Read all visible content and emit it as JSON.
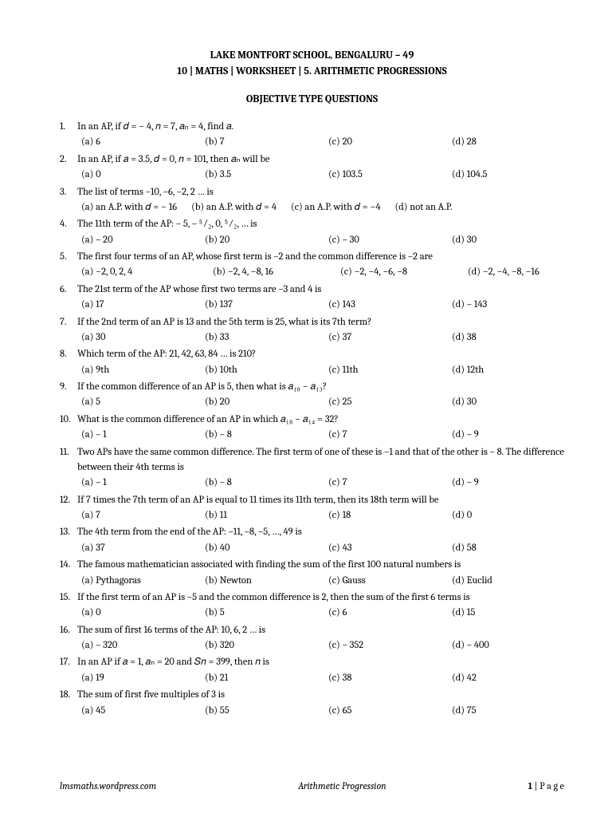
{
  "header": {
    "line1": "LAKE MONTFORT SCHOOL, BENGALURU – 49",
    "line2": "10 | MATHS | WORKSHEET | 5. ARITHMETIC PROGRESSIONS"
  },
  "subheader": "OBJECTIVE TYPE QUESTIONS",
  "questions": [
    {
      "n": "1.",
      "text": "In an AP, if 𝑑 = − 4, 𝑛 = 7, 𝑎ₙ = 4, find 𝑎.",
      "opts": [
        "(a) 6",
        "(b) 7",
        "(c) 20",
        "(d) 28"
      ]
    },
    {
      "n": "2.",
      "text": "In an AP, if 𝑎 = 3.5, 𝑑 = 0, 𝑛 = 101, then 𝑎ₙ will be",
      "opts": [
        "(a) 0",
        "(b) 3.5",
        "(c) 103.5",
        "(d) 104.5"
      ]
    },
    {
      "n": "3.",
      "text": "The list of terms –10, –6, –2, 2 … is",
      "opts_inline": true,
      "opts": [
        "(a) an A.P. with 𝑑 = − 16",
        "(b) an A.P. with 𝑑 = 4",
        "(c) an A.P. with 𝑑 = −4",
        "(d) not an A.P."
      ]
    },
    {
      "n": "4.",
      "text": "The 11th term of the AP: – 5, – ⁵⁄₂, 0, ⁵⁄₂, … is",
      "opts": [
        "(a) – 20",
        "(b) 20",
        "(c) – 30",
        "(d) 30"
      ]
    },
    {
      "n": "5.",
      "text": "The first four terms of an AP, whose first term is –2 and the common difference is –2 are",
      "opts": [
        "(a) −2, 0, 2, 4",
        "(b) −2, 4, −8, 16",
        "(c) −2, −4, −6, −8",
        "(d) −2, −4, −8, −16"
      ],
      "wide": true
    },
    {
      "n": "6.",
      "text": "The 21st term of the AP whose first two terms are –3 and 4 is",
      "opts": [
        "(a) 17",
        "(b) 137",
        "(c) 143",
        "(d) – 143"
      ]
    },
    {
      "n": "7.",
      "text": "If the 2nd term of an AP is 13 and the 5th term is 25, what is its 7th term?",
      "opts": [
        "(a) 30",
        "(b) 33",
        "(c) 37",
        "(d) 38"
      ]
    },
    {
      "n": "8.",
      "text": "Which term of the AP: 21, 42, 63, 84 … is 210?",
      "opts": [
        "(a) 9th",
        "(b) 10th",
        "(c) 11th",
        "(d) 12th"
      ]
    },
    {
      "n": "9.",
      "text": "If the common difference of an AP is 5, then what is 𝑎₁₈ − 𝑎₁₃?",
      "opts": [
        "(a) 5",
        "(b) 20",
        "(c) 25",
        "(d) 30"
      ]
    },
    {
      "n": "10.",
      "text": "What is the common difference of an AP in which 𝑎₁₈ − 𝑎₁₄ = 32?",
      "opts": [
        "(a) – 1",
        "(b) – 8",
        "(c) 7",
        "(d) – 9"
      ]
    },
    {
      "n": "11.",
      "text": "Two APs have the same common difference. The first term of one of these is –1 and that of the other is – 8. The difference between their 4th terms is",
      "opts": [
        "(a) – 1",
        "(b) – 8",
        "(c) 7",
        "(d) – 9"
      ]
    },
    {
      "n": "12.",
      "text": "If 7 times the 7th term of an AP is equal to 11 times its 11th term, then its 18th term will be",
      "opts": [
        "(a) 7",
        "(b) 11",
        "(c) 18",
        "(d) 0"
      ]
    },
    {
      "n": "13.",
      "text": "The 4th term from the end of the AP: –11, –8, –5, …, 49 is",
      "opts": [
        "(a) 37",
        "(b) 40",
        "(c) 43",
        "(d) 58"
      ]
    },
    {
      "n": "14.",
      "text": "The famous mathematician associated with finding the sum of the first 100 natural numbers is",
      "opts": [
        "(a) Pythagoras",
        "(b) Newton",
        "(c) Gauss",
        "(d) Euclid"
      ]
    },
    {
      "n": "15.",
      "text": "If the first term of an AP is –5 and the common difference is 2, then the sum of the first 6 terms is",
      "opts": [
        "(a) 0",
        "(b) 5",
        "(c) 6",
        "(d) 15"
      ]
    },
    {
      "n": "16.",
      "text": "The sum of first 16 terms of the AP: 10, 6, 2 … is",
      "opts": [
        "(a) – 320",
        "(b) 320",
        "(c) – 352",
        "(d) – 400"
      ]
    },
    {
      "n": "17.",
      "text": "In an AP if 𝑎 = 1, 𝑎ₙ = 20 and 𝑆𝑛 = 399, then 𝑛 is",
      "opts": [
        "(a) 19",
        "(b) 21",
        "(c) 38",
        "(d) 42"
      ]
    },
    {
      "n": "18.",
      "text": "The sum of first five multiples of 3 is",
      "opts": [
        "(a) 45",
        "(b) 55",
        "(c) 65",
        "(d) 75"
      ]
    }
  ],
  "footer": {
    "left": "lmsmaths.wordpress.com",
    "center": "Arithmetic Progression",
    "right_num": "1",
    "right_label": " | P a g e"
  }
}
